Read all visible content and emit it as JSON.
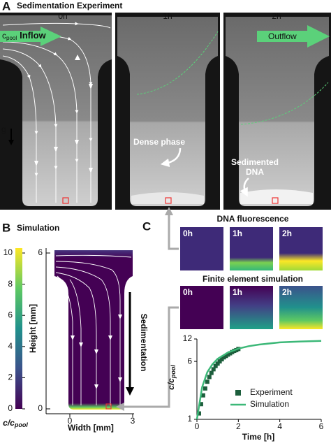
{
  "panel_a": {
    "label": "A",
    "title": "Sedimentation Experiment",
    "times": [
      "0h",
      "1h",
      "2h"
    ],
    "inflow": {
      "main": "c",
      "sub": "pool",
      "text": "Inflow"
    },
    "outflow": "Outflow",
    "gravity": "g",
    "annotations": [
      "Dense phase",
      "Sedimented DNA"
    ]
  },
  "panel_b": {
    "label": "B",
    "title": "Simulation",
    "colorbar": {
      "lim": [
        0,
        10
      ],
      "ticks": [
        0,
        2,
        4,
        6,
        8,
        10
      ],
      "label": {
        "main": "c/c",
        "sub": "pool"
      }
    },
    "ylabel": "Height [mm]",
    "ylim": [
      0,
      6
    ],
    "yticks": [
      0,
      6
    ],
    "xlabel": "Width [mm]",
    "xlim": [
      0,
      3
    ],
    "xticks": [
      0,
      3
    ],
    "arrow_label": "Sedimentation"
  },
  "panel_c": {
    "label": "C",
    "fluorescence_title": "DNA fluorescence",
    "fluorescence_times": [
      "0h",
      "1h",
      "2h"
    ],
    "simulation_title": "Finite element simulation",
    "simulation_times": [
      "0h",
      "1h",
      "2h"
    ]
  },
  "chart_data": {
    "type": "line",
    "xlabel": "Time [h]",
    "ylabel": {
      "main": "c/c",
      "sub": "pool"
    },
    "xlim": [
      0,
      6
    ],
    "ylim": [
      1,
      12
    ],
    "xticks": [
      0,
      2,
      4,
      6
    ],
    "yticks": [
      1,
      6,
      12
    ],
    "log_y": true,
    "legend": "lower-right",
    "series": [
      {
        "name": "Experiment",
        "color": "#1d5e3c",
        "marker": "square",
        "x": [
          0.1,
          0.2,
          0.3,
          0.4,
          0.5,
          0.6,
          0.7,
          0.8,
          0.9,
          1.0,
          1.1,
          1.2,
          1.3,
          1.4,
          1.5,
          1.6,
          1.7,
          1.8,
          1.9,
          2.0
        ],
        "values": [
          1.2,
          1.6,
          2.1,
          2.6,
          3.2,
          3.7,
          4.2,
          4.7,
          5.2,
          5.6,
          6.0,
          6.4,
          6.8,
          7.1,
          7.4,
          7.7,
          8.0,
          8.3,
          8.5,
          8.8
        ]
      },
      {
        "name": "Simulation",
        "color": "#3cb878",
        "marker": "line",
        "x": [
          0,
          0.25,
          0.5,
          0.75,
          1,
          1.5,
          2,
          2.5,
          3,
          4,
          5,
          6
        ],
        "values": [
          1,
          2.7,
          4.3,
          5.5,
          6.5,
          7.9,
          8.9,
          9.6,
          10.1,
          10.8,
          11.1,
          11.3
        ]
      }
    ]
  }
}
